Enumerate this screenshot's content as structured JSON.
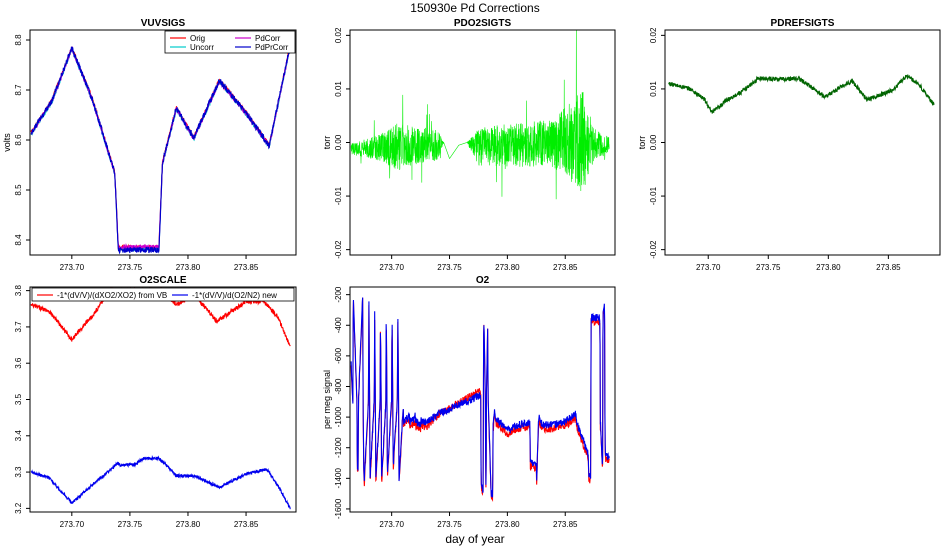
{
  "figure": {
    "suptitle": "150930e   Pd Corrections",
    "xlabel": "day of year"
  },
  "chart_data": [
    {
      "id": "vuvsigs",
      "type": "line",
      "title": "VUVSIGS",
      "ylabel": "volts",
      "xlim": [
        273.664,
        273.893
      ],
      "ylim": [
        8.37,
        8.82
      ],
      "xticks": [
        273.7,
        273.75,
        273.8,
        273.85
      ],
      "xtick_labels": [
        "273.70",
        "273.75",
        "273.80",
        "273.85"
      ],
      "yticks": [
        8.4,
        8.5,
        8.6,
        8.7,
        8.8
      ],
      "ytick_labels": [
        "8.4",
        "8.5",
        "8.6",
        "8.7",
        "8.8"
      ],
      "legend": {
        "position": "top-right",
        "columns": 2,
        "entries": [
          "Orig",
          "Uncorr",
          "PdCorr",
          "PdPrCorr"
        ]
      },
      "series": [
        {
          "name": "Orig",
          "color": "#ff0000",
          "noise": 0.004,
          "x": [
            273.665,
            273.683,
            273.7,
            273.718,
            273.737,
            273.74,
            273.775,
            273.778,
            273.79,
            273.805,
            273.827,
            273.85,
            273.87,
            273.888
          ],
          "y": [
            8.615,
            8.68,
            8.785,
            8.68,
            8.535,
            8.385,
            8.385,
            8.555,
            8.665,
            8.605,
            8.72,
            8.655,
            8.59,
            8.79
          ]
        },
        {
          "name": "Uncorr",
          "color": "#00cccc",
          "noise": 0.004,
          "x": [
            273.665,
            273.683,
            273.7,
            273.718,
            273.737,
            273.74,
            273.775,
            273.778,
            273.79,
            273.805,
            273.827,
            273.85,
            273.87,
            273.888
          ],
          "y": [
            8.612,
            8.677,
            8.782,
            8.677,
            8.532,
            8.382,
            8.382,
            8.552,
            8.662,
            8.602,
            8.717,
            8.652,
            8.587,
            8.787
          ]
        },
        {
          "name": "PdCorr",
          "color": "#cc00cc",
          "noise": 0.004,
          "x": [
            273.665,
            273.683,
            273.7,
            273.718,
            273.737,
            273.74,
            273.775,
            273.778,
            273.79,
            273.805,
            273.827,
            273.85,
            273.87,
            273.888
          ],
          "y": [
            8.613,
            8.678,
            8.783,
            8.678,
            8.533,
            8.386,
            8.386,
            8.553,
            8.663,
            8.603,
            8.718,
            8.653,
            8.588,
            8.788
          ]
        },
        {
          "name": "PdPrCorr",
          "color": "#0000cc",
          "noise": 0.006,
          "x": [
            273.665,
            273.683,
            273.7,
            273.718,
            273.737,
            273.74,
            273.775,
            273.778,
            273.79,
            273.805,
            273.827,
            273.85,
            273.87,
            273.888
          ],
          "y": [
            8.614,
            8.679,
            8.784,
            8.679,
            8.534,
            8.38,
            8.38,
            8.554,
            8.664,
            8.604,
            8.719,
            8.654,
            8.589,
            8.789
          ]
        }
      ]
    },
    {
      "id": "pdo2sigts",
      "type": "line",
      "title": "PDO2SIGTS",
      "ylabel": "torr",
      "xlim": [
        273.664,
        273.893
      ],
      "ylim": [
        -0.021,
        0.021
      ],
      "xticks": [
        273.7,
        273.75,
        273.8,
        273.85
      ],
      "xtick_labels": [
        "273.70",
        "273.75",
        "273.80",
        "273.85"
      ],
      "yticks": [
        -0.02,
        -0.01,
        0.0,
        0.01,
        0.02
      ],
      "ytick_labels": [
        "-0.02",
        "-0.01",
        "0.00",
        "0.01",
        "0.02"
      ],
      "series": [
        {
          "name": "",
          "color": "#00ee00",
          "noise_mode": "envelope",
          "x": [
            273.665,
            273.69,
            273.705,
            273.72,
            273.74,
            273.745,
            273.75,
            273.758,
            273.765,
            273.775,
            273.8,
            273.84,
            273.865,
            273.875,
            273.888
          ],
          "y": [
            -0.0012,
            -0.001,
            -0.0008,
            -0.0006,
            -0.0004,
            0.0,
            -0.003,
            -0.0005,
            0.0,
            -0.0008,
            -0.0005,
            -0.0002,
            0.0,
            -0.0004,
            -0.0005
          ],
          "amp": [
            0.001,
            0.0025,
            0.0045,
            0.0035,
            0.003,
            0.0,
            0.0,
            0.0,
            0.0,
            0.0035,
            0.004,
            0.0045,
            0.01,
            0.003,
            0.0015
          ]
        }
      ]
    },
    {
      "id": "pdrefsigts",
      "type": "line",
      "title": "PDREFSIGTS",
      "ylabel": "torr",
      "xlim": [
        273.664,
        273.893
      ],
      "ylim": [
        -0.021,
        0.021
      ],
      "xticks": [
        273.7,
        273.75,
        273.8,
        273.85
      ],
      "xtick_labels": [
        "273.70",
        "273.75",
        "273.80",
        "273.85"
      ],
      "yticks": [
        -0.02,
        -0.01,
        0.0,
        0.01,
        0.02
      ],
      "ytick_labels": [
        "-0.02",
        "-0.01",
        "0.00",
        "0.01",
        "0.02"
      ],
      "series": [
        {
          "name": "",
          "color": "#006400",
          "noise": 0.0004,
          "x": [
            273.667,
            273.685,
            273.697,
            273.703,
            273.708,
            273.716,
            273.728,
            273.742,
            273.765,
            273.775,
            273.785,
            273.797,
            273.808,
            273.82,
            273.832,
            273.845,
            273.855,
            273.865,
            273.875,
            273.888
          ],
          "y": [
            0.011,
            0.01,
            0.008,
            0.0055,
            0.0065,
            0.008,
            0.0095,
            0.012,
            0.0118,
            0.012,
            0.0105,
            0.0085,
            0.01,
            0.0115,
            0.008,
            0.009,
            0.01,
            0.0125,
            0.011,
            0.007
          ]
        }
      ]
    },
    {
      "id": "o2scale",
      "type": "line",
      "title": "O2SCALE",
      "ylabel": "",
      "xlim": [
        273.664,
        273.893
      ],
      "ylim": [
        3.19,
        3.81
      ],
      "xticks": [
        273.7,
        273.75,
        273.8,
        273.85
      ],
      "xtick_labels": [
        "273.70",
        "273.75",
        "273.80",
        "273.85"
      ],
      "yticks": [
        3.2,
        3.3,
        3.4,
        3.5,
        3.6,
        3.7,
        3.8
      ],
      "ytick_labels": [
        "3.2",
        "3.3",
        "3.4",
        "3.5",
        "3.6",
        "3.7",
        "3.8"
      ],
      "legend": {
        "position": "top",
        "columns": 2,
        "entries": [
          "-1*(dV/V)/(dXO2/XO2) from VB",
          "-1*(dV/V)/d(O2/N2) new"
        ]
      },
      "series": [
        {
          "name": "-1*(dV/V)/(dXO2/XO2) from VB",
          "color": "#ff0000",
          "noise": 0.006,
          "x": [
            273.665,
            273.68,
            273.7,
            273.72,
            273.732,
            273.778,
            273.79,
            273.805,
            273.825,
            273.85,
            273.865,
            273.877,
            273.888
          ],
          "y": [
            3.76,
            3.745,
            3.665,
            3.74,
            3.8,
            3.8,
            3.76,
            3.79,
            3.715,
            3.77,
            3.77,
            3.73,
            3.645
          ]
        },
        {
          "name": "-1*(dV/V)/d(O2/N2) new",
          "color": "#0000ee",
          "noise": 0.004,
          "x": [
            273.665,
            273.68,
            273.7,
            273.718,
            273.74,
            273.742,
            273.754,
            273.762,
            273.775,
            273.778,
            273.79,
            273.805,
            273.827,
            273.85,
            273.868,
            273.878,
            273.888
          ],
          "y": [
            3.3,
            3.285,
            3.215,
            3.265,
            3.325,
            3.32,
            3.32,
            3.338,
            3.338,
            3.33,
            3.29,
            3.29,
            3.258,
            3.295,
            3.308,
            3.26,
            3.2
          ]
        }
      ]
    },
    {
      "id": "o2",
      "type": "line",
      "title": "O2",
      "ylabel": "per meg signal",
      "xlim": [
        273.664,
        273.893
      ],
      "ylim": [
        -1620,
        -150
      ],
      "xticks": [
        273.7,
        273.75,
        273.8,
        273.85
      ],
      "xtick_labels": [
        "273.70",
        "273.75",
        "273.80",
        "273.85"
      ],
      "yticks": [
        -1600,
        -1400,
        -1200,
        -1000,
        -800,
        -600,
        -400,
        -200
      ],
      "ytick_labels": [
        "-1600",
        "-1400",
        "-1200",
        "-1000",
        "-800",
        "-600",
        "-400",
        "-200"
      ],
      "series": [
        {
          "name": "",
          "color": "#ff0000",
          "offset": 4,
          "noise": 25,
          "x": [
            273.665,
            273.6665,
            273.6668,
            273.67,
            273.6703,
            273.671,
            273.6713,
            273.675,
            273.6753,
            273.676,
            273.6763,
            273.68,
            273.6803,
            273.681,
            273.6813,
            273.685,
            273.6853,
            273.686,
            273.6863,
            273.69,
            273.6903,
            273.691,
            273.6913,
            273.695,
            273.6953,
            273.696,
            273.6963,
            273.7,
            273.7003,
            273.701,
            273.7013,
            273.705,
            273.7053,
            273.706,
            273.7063,
            273.71,
            273.7103,
            273.711,
            273.7113,
            273.715,
            273.7153,
            273.716,
            273.7163,
            273.72,
            273.7203,
            273.721,
            273.7213,
            273.725,
            273.7253,
            273.726,
            273.7263,
            273.73,
            273.735,
            273.74,
            273.776,
            273.777,
            273.7773,
            273.779,
            273.7793,
            273.7795,
            273.7798,
            273.781,
            273.7813,
            273.7816,
            273.7819,
            273.783,
            273.7833,
            273.784,
            273.7843,
            273.786,
            273.787,
            273.7873,
            273.7876,
            273.788,
            273.7883,
            273.7886,
            273.789,
            273.79,
            273.8,
            273.81,
            273.818,
            273.8183,
            273.8195,
            273.8198,
            273.825,
            273.8253,
            273.827,
            273.8273,
            273.83,
            273.84,
            273.85,
            273.859,
            273.86,
            273.8603,
            273.8606,
            273.87,
            273.8703,
            273.872,
            273.8723,
            273.88,
            273.8803,
            273.8806,
            273.882,
            273.8823,
            273.8826,
            273.884,
            273.8843,
            273.8846,
            273.888
          ],
          "y": [
            -650,
            -880,
            -180,
            -880,
            -1330,
            -1350,
            -880,
            -200,
            -900,
            -1380,
            -1420,
            -860,
            -180,
            -900,
            -1400,
            -860,
            -300,
            -950,
            -1400,
            -880,
            -380,
            -920,
            -1410,
            -880,
            -260,
            -950,
            -1380,
            -860,
            -270,
            -900,
            -1330,
            -850,
            -270,
            -880,
            -1420,
            -900,
            -1050,
            -1000,
            -1020,
            -1000,
            -990,
            -1050,
            -1030,
            -1010,
            -980,
            -1040,
            -1030,
            -1050,
            -1000,
            -1020,
            -1030,
            -1040,
            -1000,
            -960,
            -800,
            -850,
            -1420,
            -1480,
            -830,
            -400,
            -380,
            -880,
            -1400,
            -1440,
            -830,
            -390,
            -860,
            -1000,
            -1080,
            -1500,
            -1500,
            -1540,
            -1030,
            -1050,
            -1000,
            -980,
            -960,
            -1010,
            -1080,
            -1050,
            -1040,
            -1020,
            -1050,
            -1300,
            -1300,
            -1410,
            -1000,
            -1000,
            -1050,
            -1050,
            -1030,
            -980,
            -1030,
            -1050,
            -1050,
            -1250,
            -1400,
            -1380,
            -350,
            -350,
            -1050,
            -1050,
            -1300,
            -1290,
            -300,
            -280,
            -1000,
            -1250,
            -1260
          ]
        },
        {
          "name": "",
          "color": "#0000ee",
          "offset": 0,
          "noise": 25,
          "x": [
            273.665,
            273.6665,
            273.6668,
            273.67,
            273.6703,
            273.671,
            273.6713,
            273.675,
            273.6753,
            273.676,
            273.6763,
            273.68,
            273.6803,
            273.681,
            273.6813,
            273.685,
            273.6853,
            273.686,
            273.6863,
            273.69,
            273.6903,
            273.691,
            273.6913,
            273.695,
            273.6953,
            273.696,
            273.6963,
            273.7,
            273.7003,
            273.701,
            273.7013,
            273.705,
            273.7053,
            273.706,
            273.7063,
            273.71,
            273.7103,
            273.711,
            273.7113,
            273.715,
            273.7153,
            273.716,
            273.7163,
            273.72,
            273.7203,
            273.721,
            273.7213,
            273.725,
            273.7253,
            273.726,
            273.7263,
            273.73,
            273.735,
            273.74,
            273.776,
            273.777,
            273.7773,
            273.779,
            273.7793,
            273.7795,
            273.7798,
            273.781,
            273.7813,
            273.7816,
            273.7819,
            273.783,
            273.7833,
            273.784,
            273.7843,
            273.786,
            273.787,
            273.7873,
            273.7876,
            273.788,
            273.7883,
            273.7886,
            273.789,
            273.79,
            273.8,
            273.81,
            273.818,
            273.8183,
            273.8195,
            273.8198,
            273.825,
            273.8253,
            273.827,
            273.8273,
            273.83,
            273.84,
            273.85,
            273.859,
            273.86,
            273.8603,
            273.8606,
            273.87,
            273.8703,
            273.872,
            273.8723,
            273.88,
            273.8803,
            273.8806,
            273.882,
            273.8823,
            273.8826,
            273.884,
            273.8843,
            273.8846,
            273.888
          ],
          "y": [
            -650,
            -900,
            -180,
            -900,
            -1330,
            -1350,
            -900,
            -200,
            -920,
            -1380,
            -1420,
            -880,
            -180,
            -920,
            -1400,
            -880,
            -300,
            -970,
            -1400,
            -900,
            -380,
            -940,
            -1410,
            -900,
            -260,
            -970,
            -1380,
            -880,
            -270,
            -920,
            -1330,
            -870,
            -270,
            -900,
            -1420,
            -920,
            -1050,
            -1000,
            -1020,
            -1000,
            -990,
            -1050,
            -1030,
            -1010,
            -980,
            -1040,
            -1030,
            -1050,
            -1000,
            -1020,
            -1030,
            -1040,
            -1010,
            -980,
            -860,
            -880,
            -1420,
            -1480,
            -850,
            -400,
            -380,
            -900,
            -1400,
            -1440,
            -850,
            -390,
            -880,
            -1000,
            -1080,
            -1500,
            -1500,
            -1540,
            -1030,
            -1050,
            -1000,
            -980,
            -960,
            -1010,
            -1080,
            -1050,
            -1040,
            -1020,
            -1050,
            -1300,
            -1300,
            -1410,
            -1000,
            -1000,
            -1050,
            -1050,
            -1030,
            -980,
            -1030,
            -1050,
            -1050,
            -1250,
            -1400,
            -1380,
            -350,
            -350,
            -1050,
            -1050,
            -1300,
            -1290,
            -300,
            -280,
            -1000,
            -1250,
            -1260
          ]
        }
      ]
    }
  ]
}
